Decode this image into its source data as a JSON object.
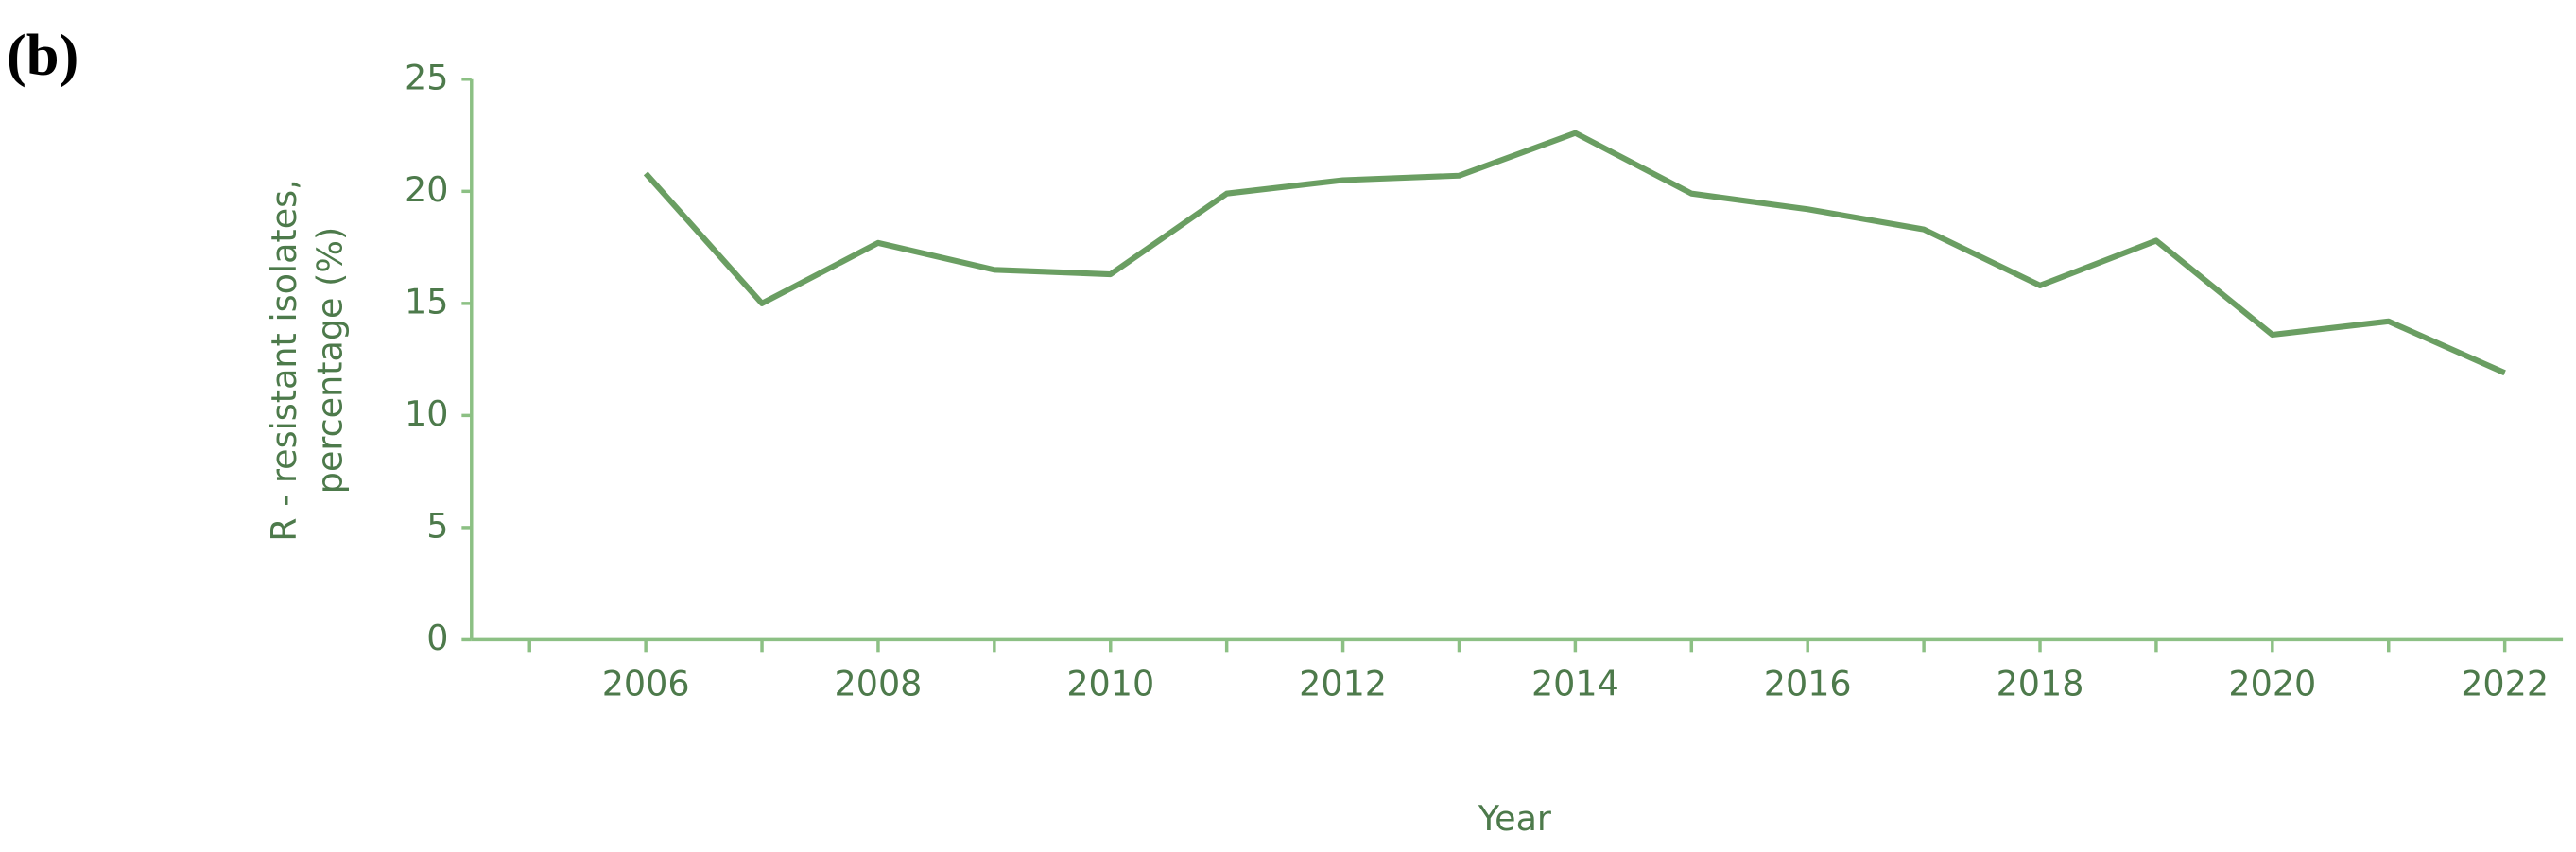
{
  "panel_label": "(b)",
  "chart_data": {
    "type": "line",
    "y_label": [
      "R - resistant isolates,",
      "percentage   (%)"
    ],
    "x_label": "Year",
    "x": [
      2006,
      2007,
      2008,
      2009,
      2010,
      2011,
      2012,
      2013,
      2014,
      2015,
      2016,
      2017,
      2018,
      2019,
      2020,
      2021,
      2022
    ],
    "series": [
      {
        "color": "#6a9e62",
        "values": [
          20.8,
          15.0,
          17.7,
          16.5,
          16.3,
          19.9,
          20.5,
          20.7,
          22.6,
          19.9,
          19.2,
          18.3,
          15.8,
          17.8,
          13.6,
          14.2,
          11.9
        ]
      }
    ],
    "xlim": [
      2004.5,
      2022.5
    ],
    "xticks": [
      2006,
      2008,
      2010,
      2012,
      2014,
      2016,
      2018,
      2020,
      2022
    ],
    "xminorticks": [
      2005,
      2007,
      2009,
      2011,
      2013,
      2015,
      2017,
      2019,
      2021
    ],
    "ylim": [
      0,
      25
    ],
    "yticks": [
      0,
      5,
      10,
      15,
      20,
      25
    ],
    "axis_color": "#8cc084",
    "grid": false
  }
}
